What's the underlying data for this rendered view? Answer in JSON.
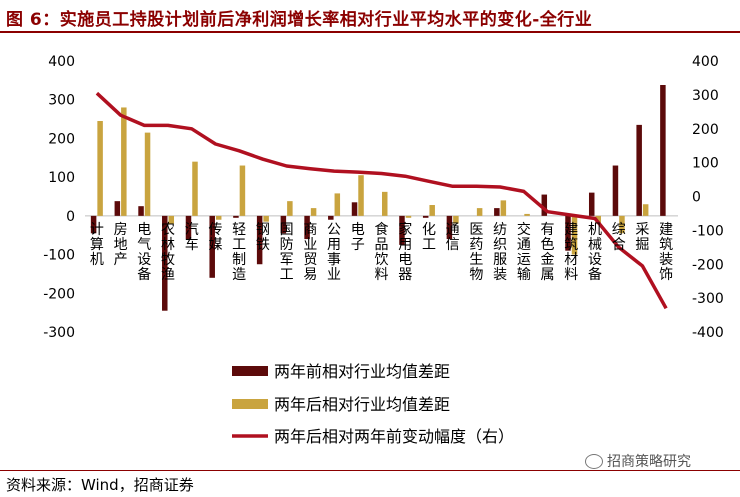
{
  "title": "图 6：实施员工持股计划前后净利润增长率相对行业平均水平的变化-全行业",
  "source": "资料来源：Wind，招商证券",
  "watermark": "招商策略研究",
  "colors": {
    "dark": "#5c0a0a",
    "gold": "#c9a43f",
    "line": "#b01020",
    "accent": "#8b0000"
  },
  "chart_data": {
    "type": "bar",
    "categories": [
      "计算机",
      "房地产",
      "电气设备",
      "农林牧渔",
      "汽车",
      "传媒",
      "轻工制造",
      "钢铁",
      "国防军工",
      "商业贸易",
      "公用事业",
      "电子",
      "食品饮料",
      "家用电器",
      "化工",
      "通信",
      "医药生物",
      "纺织服装",
      "交通运输",
      "有色金属",
      "建筑材料",
      "机械设备",
      "综合",
      "采掘",
      "建筑装饰"
    ],
    "series": [
      {
        "name": "两年前相对行业均值差距",
        "axis": "left",
        "type": "bar",
        "values": [
          -45,
          38,
          25,
          -245,
          -60,
          -160,
          -5,
          -125,
          -45,
          -60,
          -10,
          35,
          0,
          -75,
          -5,
          -60,
          0,
          20,
          0,
          55,
          -90,
          60,
          130,
          235,
          338
        ]
      },
      {
        "name": "两年后相对行业均值差距",
        "axis": "left",
        "type": "bar",
        "values": [
          245,
          280,
          215,
          -20,
          140,
          -10,
          130,
          -15,
          38,
          20,
          58,
          105,
          62,
          -5,
          28,
          -20,
          20,
          40,
          5,
          0,
          -100,
          -20,
          -45,
          30,
          0
        ]
      },
      {
        "name": "两年后相对两年前变动幅度（右）",
        "axis": "right",
        "type": "line",
        "values": [
          305,
          240,
          210,
          210,
          200,
          155,
          135,
          110,
          90,
          82,
          75,
          72,
          68,
          60,
          45,
          30,
          30,
          28,
          15,
          -45,
          -55,
          -65,
          -150,
          -205,
          -330
        ]
      }
    ],
    "y_left": {
      "min": -300,
      "max": 400,
      "ticks": [
        -300,
        -200,
        -100,
        0,
        100,
        200,
        300,
        400
      ]
    },
    "y_right": {
      "min": -400,
      "max": 400,
      "ticks": [
        -400,
        -300,
        -200,
        -100,
        0,
        100,
        200,
        300,
        400
      ]
    },
    "legend_position": "bottom-center"
  }
}
